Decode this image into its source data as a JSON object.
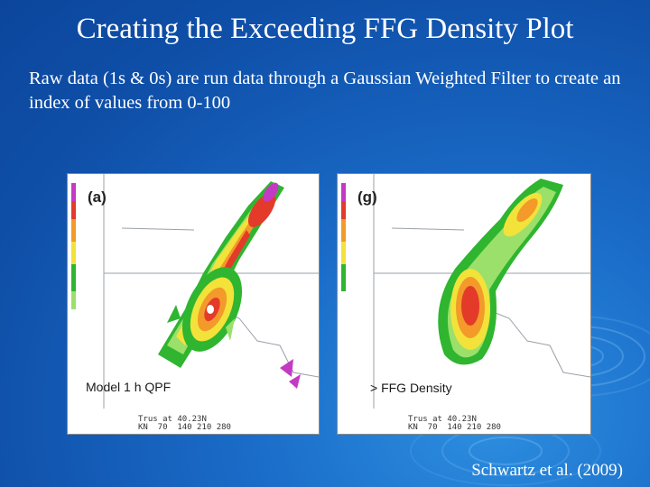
{
  "slide": {
    "title": "Creating the Exceeding FFG Density Plot",
    "body": "Raw data (1s & 0s) are run data through a Gaussian Weighted Filter to create an index of values from 0-100",
    "credit": "Schwartz  et al. (2009)"
  },
  "panel_left": {
    "tag": "(a)",
    "label": "Model 1 h QPF",
    "coord_line1": "Trus at 40.23N",
    "coord_line2": "KN  70  140 210 280"
  },
  "panel_right": {
    "tag": "(g)",
    "label": "> FFG Density",
    "coord_line1": "Trus at 40.23N",
    "coord_line2": "KN  70  140 210 280"
  },
  "colors": {
    "background": "#1a6cc8",
    "green": "#2fb52f",
    "light_green": "#9be06a",
    "yellow": "#f2e23a",
    "orange": "#f39a2a",
    "red": "#e33a2a",
    "magenta": "#c43ac4"
  }
}
